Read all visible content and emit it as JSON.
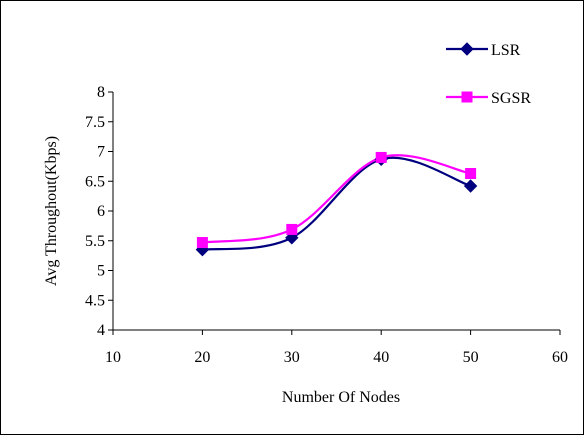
{
  "chart_data": {
    "type": "line",
    "xlabel": "Number Of Nodes",
    "ylabel": "Avg Throughout(Kbps)",
    "xlim": [
      10,
      60
    ],
    "ylim": [
      4,
      8
    ],
    "x_ticks": [
      "10",
      "20",
      "30",
      "40",
      "50",
      "60"
    ],
    "y_ticks": [
      "4",
      "4.5",
      "5",
      "5.5",
      "6",
      "6.5",
      "7",
      "7.5",
      "8"
    ],
    "grid": false,
    "legend_position": "top-right",
    "series": [
      {
        "name": "LSR",
        "color": "#00007f",
        "marker": "diamond",
        "x": [
          20,
          30,
          40,
          50
        ],
        "y": [
          5.35,
          5.55,
          6.87,
          6.42
        ]
      },
      {
        "name": "SGSR",
        "color": "#ff00ff",
        "marker": "square",
        "x": [
          20,
          30,
          40,
          50
        ],
        "y": [
          5.47,
          5.69,
          6.9,
          6.63
        ]
      }
    ]
  }
}
